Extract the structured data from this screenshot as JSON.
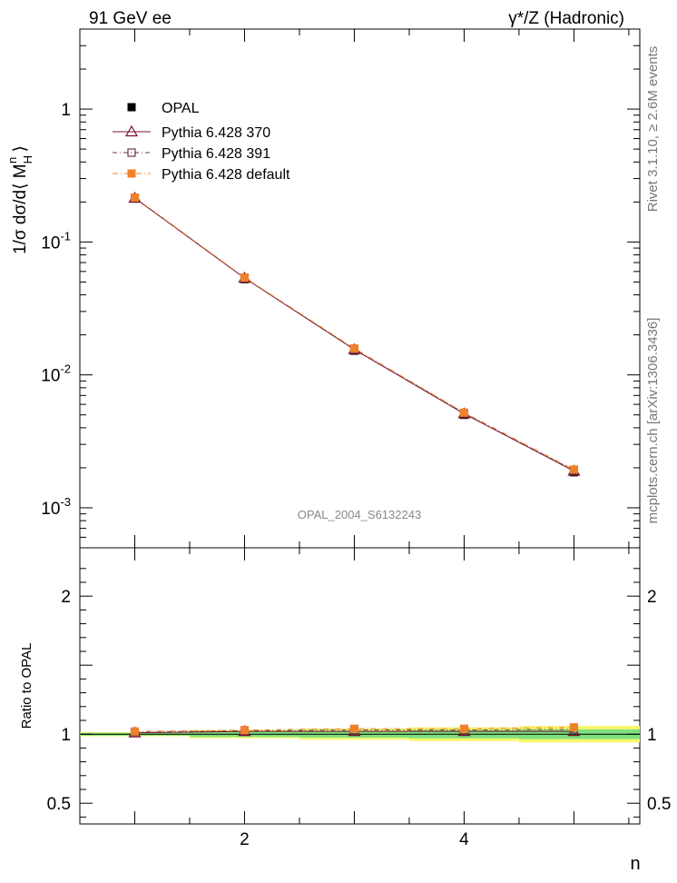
{
  "header": {
    "left_title": "91 GeV ee",
    "right_title": "γ*/Z (Hadronic)"
  },
  "side_labels": {
    "rivet": "Rivet 3.1.10, ≥ 2.6M events",
    "mcplots": "mcplots.cern.ch [arXiv:1306.3436]"
  },
  "analysis_id": "OPAL_2004_S6132243",
  "colors": {
    "opal": "#000000",
    "pythia_370": "#7a1030",
    "pythia_391": "#6b3a4a",
    "pythia_default": "#f0802a",
    "band_inner": "#7fe07f",
    "band_outer": "#f8f870"
  },
  "chart_data": [
    {
      "type": "scatter",
      "panel": "main",
      "ylabel": "1/σ dσ/d⟨ M_H^n ⟩",
      "yscale": "log",
      "ylim": [
        0.0005,
        4.0
      ],
      "xlim": [
        0.5,
        5.6
      ],
      "y_tick_labels": [
        "1",
        "10^-1",
        "10^-2",
        "10^-3"
      ],
      "legend": [
        "OPAL",
        "Pythia 6.428 370",
        "Pythia 6.428 391",
        "Pythia 6.428 default"
      ],
      "legend_position": "top-left",
      "x": [
        1,
        2,
        3,
        4,
        5
      ],
      "series": [
        {
          "name": "OPAL",
          "values": [
            0.212,
            0.0525,
            0.0152,
            0.005,
            0.00185
          ]
        },
        {
          "name": "Pythia 6.428 370",
          "values": [
            0.214,
            0.0535,
            0.0155,
            0.0051,
            0.00189
          ]
        },
        {
          "name": "Pythia 6.428 391",
          "values": [
            0.215,
            0.0537,
            0.0156,
            0.00515,
            0.00191
          ]
        },
        {
          "name": "Pythia 6.428 default",
          "values": [
            0.216,
            0.054,
            0.0158,
            0.0052,
            0.00194
          ]
        }
      ]
    },
    {
      "type": "line",
      "panel": "ratio",
      "ylabel": "Ratio to OPAL",
      "xlabel": "n",
      "ylim": [
        0.35,
        2.35
      ],
      "xlim": [
        0.5,
        5.6
      ],
      "y_tick_labels": [
        "0.5",
        "1",
        "2"
      ],
      "x_tick_labels": [
        "2",
        "4"
      ],
      "x": [
        1,
        2,
        3,
        4,
        5
      ],
      "bands": {
        "inner": [
          0.01,
          0.02,
          0.025,
          0.03,
          0.035
        ],
        "outer": [
          0.015,
          0.03,
          0.04,
          0.05,
          0.06
        ]
      },
      "series": [
        {
          "name": "Pythia 6.428 370",
          "values": [
            1.01,
            1.02,
            1.02,
            1.02,
            1.02
          ]
        },
        {
          "name": "Pythia 6.428 391",
          "values": [
            1.015,
            1.025,
            1.03,
            1.03,
            1.035
          ]
        },
        {
          "name": "Pythia 6.428 default",
          "values": [
            1.02,
            1.03,
            1.04,
            1.04,
            1.05
          ]
        }
      ]
    }
  ]
}
